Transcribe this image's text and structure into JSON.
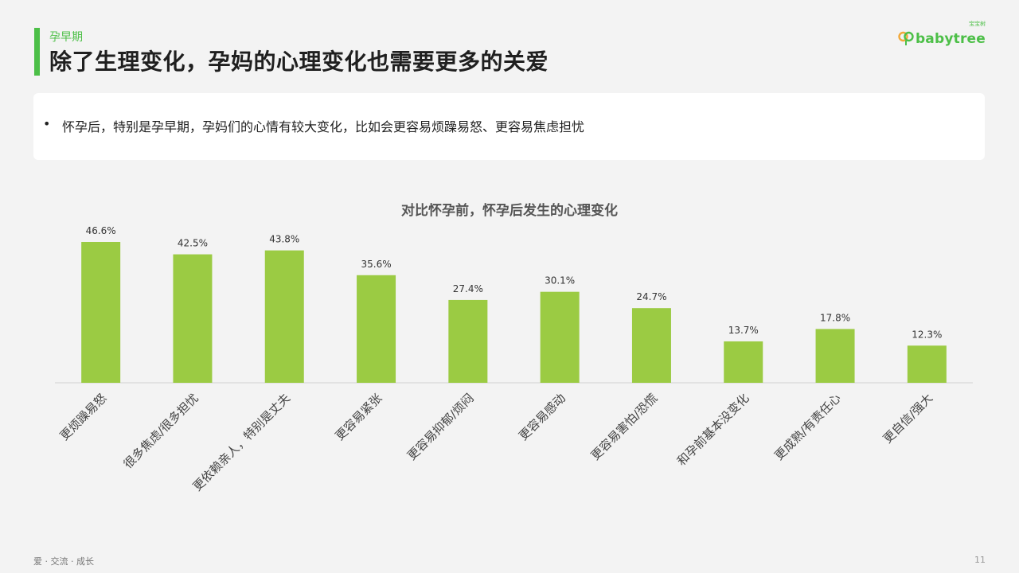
{
  "header": {
    "section": "孕早期",
    "title": "除了生理变化，孕妈的心理变化也需要更多的关爱"
  },
  "logo": {
    "text": "babytree",
    "sub": "宝宝树"
  },
  "note": {
    "bullet": "•",
    "text": "怀孕后，特别是孕早期，孕妈们的心情有较大变化，比如会更容易烦躁易怒、更容易焦虑担忧"
  },
  "chart_data": {
    "type": "bar",
    "title": "对比怀孕前，怀孕后发生的心理变化",
    "categories": [
      "更烦躁易怒",
      "很多焦虑/很多担忧",
      "更依赖亲人，特别是丈夫",
      "更容易紧张",
      "更容易抑郁/烦闷",
      "更容易感动",
      "更容易害怕/恐慌",
      "和孕前基本没变化",
      "更成熟/有责任心",
      "更自信/强大"
    ],
    "values": [
      46.6,
      42.5,
      43.8,
      35.6,
      27.4,
      30.1,
      24.7,
      13.7,
      17.8,
      12.3
    ],
    "data_labels": [
      "46.6%",
      "42.5%",
      "43.8%",
      "35.6%",
      "27.4%",
      "30.1%",
      "24.7%",
      "13.7%",
      "17.8%",
      "12.3%"
    ],
    "ylim": [
      0,
      46.6
    ],
    "grid": false,
    "bar_color": "#9bcb43"
  },
  "footer": {
    "left": "爱 · 交流 · 成长",
    "page": "11"
  }
}
